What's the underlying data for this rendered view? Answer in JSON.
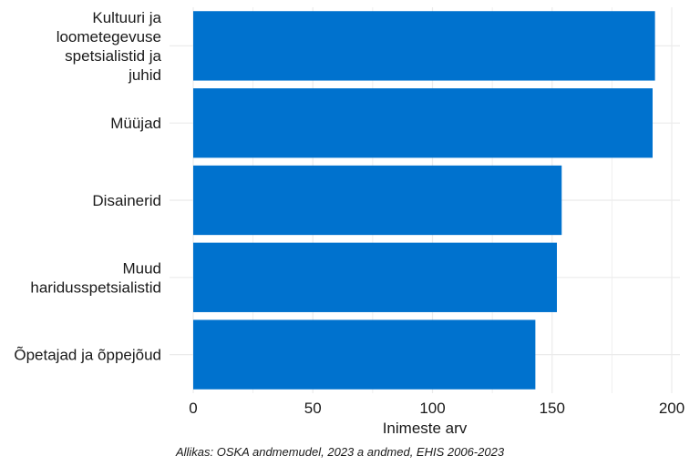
{
  "chart_data": {
    "type": "bar",
    "orientation": "horizontal",
    "categories": [
      "Kultuuri ja loometegevuse spetsialistid ja juhid",
      "Müüjad",
      "Disainerid",
      "Muud haridusspetsialistid",
      "Õpetajad ja õppejõud"
    ],
    "category_lines": [
      [
        "Kultuuri ja",
        "loometegevuse",
        "spetsialistid ja",
        "juhid"
      ],
      [
        "Müüjad"
      ],
      [
        "Disainerid"
      ],
      [
        "Muud",
        "haridusspetsialistid"
      ],
      [
        "Õpetajad ja õppejõud"
      ]
    ],
    "values": [
      193,
      192,
      154,
      152,
      143
    ],
    "xlabel": "Inimeste arv",
    "ylabel": "",
    "xlim": [
      0,
      203
    ],
    "xticks": [
      0,
      50,
      100,
      150,
      200
    ],
    "grid": true,
    "legend": "none",
    "bar_color": "#0072CE",
    "grid_color": "#EBEBEB",
    "caption": "Allikas: OSKA andmemudel, 2023 a andmed, EHIS 2006-2023"
  }
}
